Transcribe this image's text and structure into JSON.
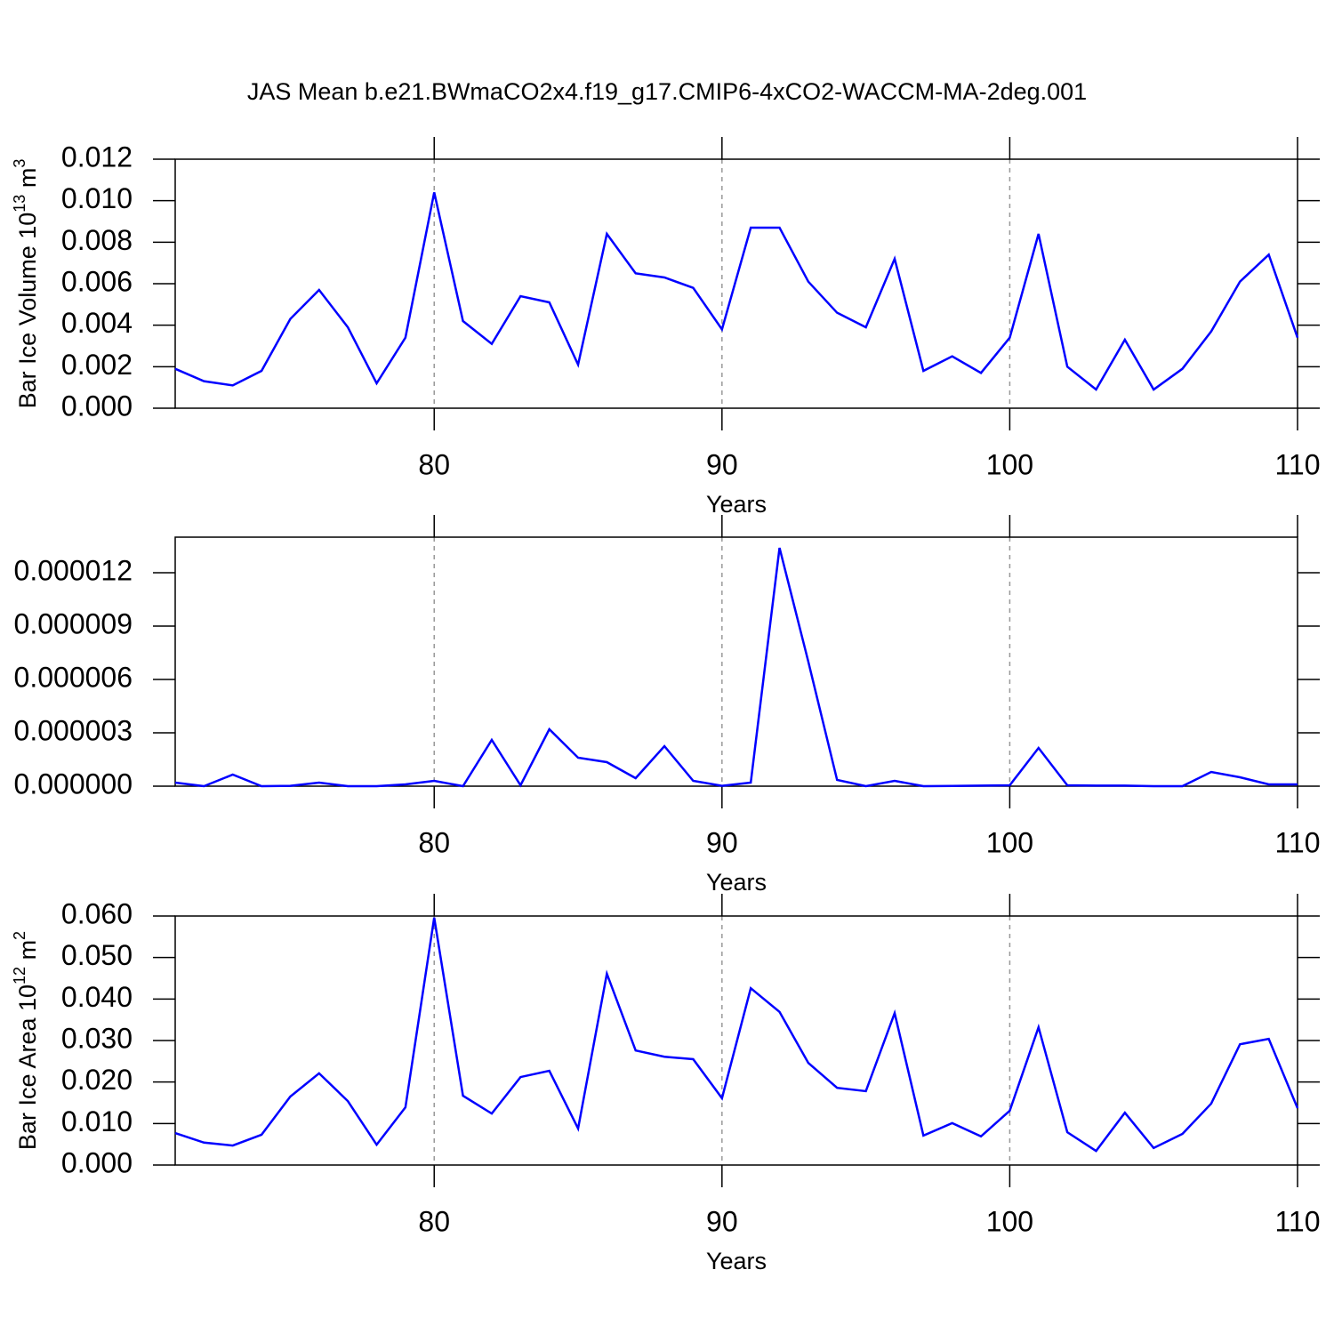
{
  "chart_data": [
    {
      "type": "line",
      "title": "JAS Mean b.e21.BWmaCO2x4.f19_g17.CMIP6-4xCO2-WACCM-MA-2deg.001",
      "x": [
        71,
        72,
        73,
        74,
        75,
        76,
        77,
        78,
        79,
        80,
        81,
        82,
        83,
        84,
        85,
        86,
        87,
        88,
        89,
        90,
        91,
        92,
        93,
        94,
        95,
        96,
        97,
        98,
        99,
        100,
        101,
        102,
        103,
        104,
        105,
        106,
        107,
        108,
        109,
        110
      ],
      "values": [
        0.0019,
        0.0013,
        0.0011,
        0.0018,
        0.0043,
        0.0057,
        0.0039,
        0.0012,
        0.0034,
        0.0104,
        0.0042,
        0.0031,
        0.0054,
        0.0051,
        0.0021,
        0.0084,
        0.0065,
        0.0063,
        0.0058,
        0.0038,
        0.0087,
        0.0087,
        0.0061,
        0.0046,
        0.0039,
        0.0072,
        0.0018,
        0.0025,
        0.0017,
        0.0034,
        0.0084,
        0.002,
        0.0009,
        0.0033,
        0.0009,
        0.0019,
        0.0037,
        0.0061,
        0.0074,
        0.0034
      ],
      "color": "#0000ff",
      "xlim": [
        71,
        110
      ],
      "xticks": [
        80,
        90,
        100,
        110
      ],
      "xgrid": true,
      "ylim": [
        0,
        0.012
      ],
      "yticks": [
        {
          "value": 0,
          "label": "0.000"
        },
        {
          "value": 0.002,
          "label": "0.002"
        },
        {
          "value": 0.004,
          "label": "0.004"
        },
        {
          "value": 0.006,
          "label": "0.006"
        },
        {
          "value": 0.008,
          "label": "0.008"
        },
        {
          "value": 0.01,
          "label": "0.010"
        },
        {
          "value": 0.012,
          "label": "0.012"
        }
      ],
      "xlabel": "Years",
      "ylabel_parts": [
        {
          "text": "Bar Ice Volume 10"
        },
        {
          "text": "13",
          "sup": true
        },
        {
          "text": " m"
        },
        {
          "text": "3",
          "sup": true
        }
      ]
    },
    {
      "type": "line",
      "x": [
        71,
        72,
        73,
        74,
        75,
        76,
        77,
        78,
        79,
        80,
        81,
        82,
        83,
        84,
        85,
        86,
        87,
        88,
        89,
        90,
        91,
        92,
        93,
        94,
        95,
        96,
        97,
        98,
        99,
        100,
        101,
        102,
        103,
        104,
        105,
        106,
        107,
        108,
        109,
        110
      ],
      "values": [
        2e-07,
        0,
        6.5e-07,
        0,
        2e-08,
        2e-07,
        0,
        0,
        1e-07,
        3e-07,
        0,
        2.6e-06,
        5e-08,
        3.2e-06,
        1.6e-06,
        1.35e-06,
        4.5e-07,
        2.25e-06,
        3e-07,
        2e-08,
        2e-07,
        1.34e-05,
        7e-06,
        3.5e-07,
        0,
        3e-07,
        0,
        1e-08,
        3e-08,
        5e-08,
        2.15e-06,
        5e-08,
        3e-08,
        3e-08,
        0,
        0,
        8e-07,
        5e-07,
        1e-07,
        1e-07
      ],
      "color": "#0000ff",
      "xlim": [
        71,
        110
      ],
      "xticks": [
        80,
        90,
        100,
        110
      ],
      "xgrid": true,
      "ylim": [
        0,
        1.4e-05
      ],
      "yticks": [
        {
          "value": 0,
          "label": "0.000000"
        },
        {
          "value": 3e-06,
          "label": "0.000003"
        },
        {
          "value": 6e-06,
          "label": "0.000006"
        },
        {
          "value": 9e-06,
          "label": "0.000009"
        },
        {
          "value": 1.2e-05,
          "label": "0.000012"
        }
      ],
      "xlabel": "Years"
    },
    {
      "type": "line",
      "x": [
        71,
        72,
        73,
        74,
        75,
        76,
        77,
        78,
        79,
        80,
        81,
        82,
        83,
        84,
        85,
        86,
        87,
        88,
        89,
        90,
        91,
        92,
        93,
        94,
        95,
        96,
        97,
        98,
        99,
        100,
        101,
        102,
        103,
        104,
        105,
        106,
        107,
        108,
        109,
        110
      ],
      "values": [
        0.0077,
        0.0054,
        0.0047,
        0.0073,
        0.0165,
        0.0221,
        0.0154,
        0.0049,
        0.0139,
        0.0596,
        0.0167,
        0.0124,
        0.0212,
        0.0227,
        0.0088,
        0.0461,
        0.0276,
        0.0261,
        0.0255,
        0.0161,
        0.0426,
        0.0369,
        0.0246,
        0.0186,
        0.0178,
        0.0366,
        0.0071,
        0.0101,
        0.0069,
        0.0131,
        0.0332,
        0.0079,
        0.0034,
        0.0126,
        0.0041,
        0.0075,
        0.0148,
        0.0291,
        0.0304,
        0.0137
      ],
      "color": "#0000ff",
      "xlim": [
        71,
        110
      ],
      "xticks": [
        80,
        90,
        100,
        110
      ],
      "xgrid": true,
      "ylim": [
        0,
        0.06
      ],
      "yticks": [
        {
          "value": 0,
          "label": "0.000"
        },
        {
          "value": 0.01,
          "label": "0.010"
        },
        {
          "value": 0.02,
          "label": "0.020"
        },
        {
          "value": 0.03,
          "label": "0.030"
        },
        {
          "value": 0.04,
          "label": "0.040"
        },
        {
          "value": 0.05,
          "label": "0.050"
        },
        {
          "value": 0.06,
          "label": "0.060"
        }
      ],
      "xlabel": "Years",
      "ylabel_parts": [
        {
          "text": "Bar Ice Area 10"
        },
        {
          "text": "12",
          "sup": true
        },
        {
          "text": " m"
        },
        {
          "text": "2",
          "sup": true
        }
      ]
    }
  ]
}
